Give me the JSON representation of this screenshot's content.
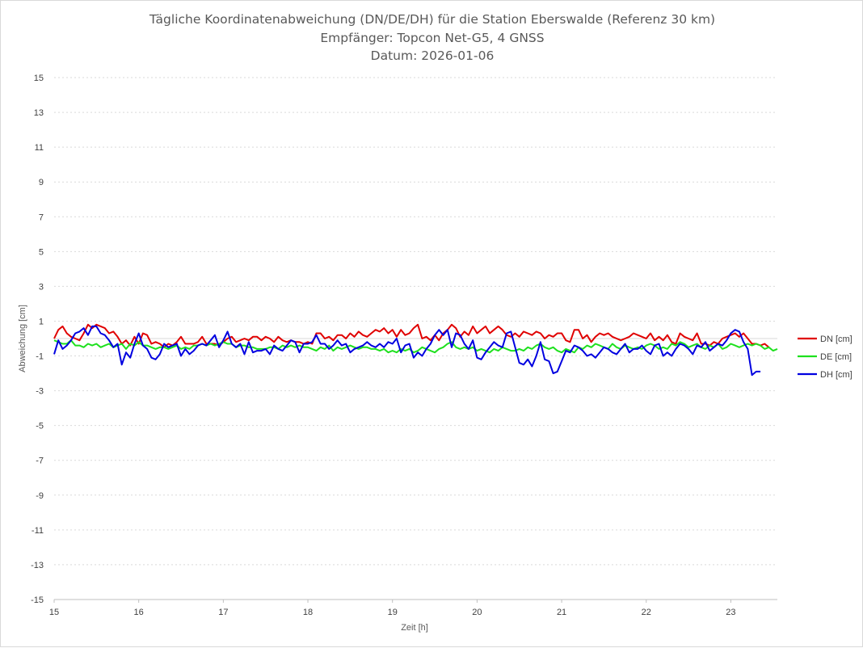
{
  "chart_data": {
    "type": "line",
    "title_lines": [
      "Tägliche Koordinatenabweichung (DN/DE/DH) für die Station Eberswalde (Referenz 30 km)",
      "Empfänger: Topcon Net-G5, 4 GNSS",
      "Datum: 2026-01-06"
    ],
    "xlabel": "Zeit [h]",
    "ylabel": "Abweichung [cm]",
    "xlim": [
      15,
      23.55
    ],
    "ylim": [
      -15,
      15
    ],
    "xticks": [
      15,
      16,
      17,
      18,
      19,
      20,
      21,
      22,
      23
    ],
    "yticks": [
      15,
      13,
      11,
      9,
      7,
      5,
      3,
      1,
      -1,
      -3,
      -5,
      -7,
      -9,
      -11,
      -13,
      -15
    ],
    "grid": true,
    "legend_position": "right",
    "x_start": 15,
    "x_step": 0.05,
    "series": [
      {
        "name": "DN [cm]",
        "color": "#e00000",
        "values": [
          0.0,
          0.5,
          0.7,
          0.3,
          0.1,
          0.0,
          -0.1,
          0.3,
          0.8,
          0.6,
          0.8,
          0.7,
          0.6,
          0.3,
          0.4,
          0.1,
          -0.3,
          -0.1,
          -0.4,
          0.1,
          -0.3,
          0.3,
          0.2,
          -0.3,
          -0.2,
          -0.3,
          -0.5,
          -0.3,
          -0.4,
          -0.2,
          0.1,
          -0.3,
          -0.3,
          -0.3,
          -0.2,
          0.1,
          -0.3,
          -0.3,
          -0.3,
          -0.4,
          -0.2,
          0.0,
          0.1,
          -0.2,
          -0.1,
          0.0,
          -0.1,
          0.1,
          0.1,
          -0.1,
          0.1,
          0.0,
          -0.2,
          0.1,
          -0.1,
          -0.2,
          -0.1,
          -0.2,
          -0.2,
          -0.3,
          -0.2,
          -0.3,
          0.3,
          0.3,
          0.0,
          0.1,
          -0.1,
          0.2,
          0.2,
          0.0,
          0.3,
          0.1,
          0.4,
          0.2,
          0.1,
          0.3,
          0.5,
          0.4,
          0.6,
          0.3,
          0.5,
          0.1,
          0.5,
          0.2,
          0.3,
          0.6,
          0.8,
          0.0,
          0.1,
          -0.1,
          0.2,
          -0.1,
          0.3,
          0.5,
          0.8,
          0.6,
          0.1,
          0.4,
          0.2,
          0.7,
          0.3,
          0.5,
          0.7,
          0.3,
          0.5,
          0.7,
          0.5,
          0.2,
          0.1,
          0.3,
          0.1,
          0.4,
          0.3,
          0.2,
          0.4,
          0.3,
          0.0,
          0.2,
          0.1,
          0.3,
          0.3,
          -0.1,
          -0.2,
          0.5,
          0.5,
          0.0,
          0.2,
          -0.2,
          0.1,
          0.3,
          0.2,
          0.3,
          0.1,
          0.0,
          -0.1,
          0.0,
          0.1,
          0.3,
          0.2,
          0.1,
          0.0,
          0.3,
          -0.1,
          0.1,
          -0.1,
          0.2,
          -0.2,
          -0.3,
          0.3,
          0.1,
          0.0,
          -0.1,
          0.3,
          -0.3,
          -0.3,
          -0.4,
          -0.2,
          -0.3,
          0.0,
          0.1,
          0.2,
          0.3,
          0.1,
          0.3,
          0.0,
          -0.3,
          -0.3,
          -0.4,
          -0.3,
          -0.5
        ]
      },
      {
        "name": "DE [cm]",
        "color": "#1ee01e",
        "values": [
          -0.1,
          -0.2,
          -0.3,
          -0.3,
          -0.1,
          -0.4,
          -0.4,
          -0.5,
          -0.3,
          -0.4,
          -0.3,
          -0.5,
          -0.4,
          -0.3,
          -0.5,
          -0.4,
          -0.3,
          -0.6,
          -0.3,
          -0.4,
          -0.2,
          -0.4,
          -0.4,
          -0.5,
          -0.6,
          -0.5,
          -0.5,
          -0.6,
          -0.5,
          -0.4,
          -0.6,
          -0.5,
          -0.6,
          -0.4,
          -0.4,
          -0.3,
          -0.4,
          -0.3,
          -0.4,
          -0.3,
          -0.2,
          -0.3,
          -0.3,
          -0.5,
          -0.4,
          -0.4,
          -0.5,
          -0.5,
          -0.6,
          -0.6,
          -0.6,
          -0.5,
          -0.5,
          -0.6,
          -0.4,
          -0.5,
          -0.4,
          -0.5,
          -0.4,
          -0.5,
          -0.5,
          -0.6,
          -0.7,
          -0.5,
          -0.6,
          -0.4,
          -0.7,
          -0.5,
          -0.6,
          -0.5,
          -0.4,
          -0.5,
          -0.6,
          -0.5,
          -0.5,
          -0.6,
          -0.6,
          -0.7,
          -0.6,
          -0.8,
          -0.7,
          -0.8,
          -0.6,
          -0.7,
          -0.6,
          -0.8,
          -0.7,
          -0.5,
          -0.6,
          -0.7,
          -0.8,
          -0.6,
          -0.5,
          -0.3,
          -0.2,
          -0.5,
          -0.6,
          -0.5,
          -0.6,
          -0.5,
          -0.7,
          -0.6,
          -0.7,
          -0.8,
          -0.6,
          -0.7,
          -0.5,
          -0.6,
          -0.7,
          -0.7,
          -0.6,
          -0.7,
          -0.5,
          -0.6,
          -0.4,
          -0.3,
          -0.5,
          -0.6,
          -0.5,
          -0.7,
          -0.8,
          -0.6,
          -0.7,
          -0.8,
          -0.5,
          -0.6,
          -0.4,
          -0.5,
          -0.3,
          -0.4,
          -0.5,
          -0.6,
          -0.3,
          -0.5,
          -0.6,
          -0.4,
          -0.5,
          -0.6,
          -0.5,
          -0.6,
          -0.4,
          -0.3,
          -0.4,
          -0.6,
          -0.5,
          -0.6,
          -0.3,
          -0.4,
          -0.2,
          -0.3,
          -0.5,
          -0.4,
          -0.3,
          -0.5,
          -0.6,
          -0.4,
          -0.5,
          -0.3,
          -0.6,
          -0.5,
          -0.3,
          -0.4,
          -0.5,
          -0.4,
          -0.3,
          -0.4,
          -0.3,
          -0.4,
          -0.6,
          -0.5,
          -0.7,
          -0.6
        ]
      },
      {
        "name": "DH [cm]",
        "color": "#0000e0",
        "values": [
          -0.9,
          -0.1,
          -0.6,
          -0.4,
          -0.1,
          0.3,
          0.4,
          0.6,
          0.2,
          0.7,
          0.7,
          0.3,
          0.2,
          -0.1,
          -0.5,
          -0.3,
          -1.5,
          -0.8,
          -1.1,
          -0.3,
          0.3,
          -0.4,
          -0.6,
          -1.1,
          -1.2,
          -0.9,
          -0.3,
          -0.5,
          -0.4,
          -0.3,
          -1.0,
          -0.6,
          -0.9,
          -0.7,
          -0.4,
          -0.3,
          -0.4,
          -0.1,
          0.2,
          -0.5,
          -0.1,
          0.4,
          -0.3,
          -0.5,
          -0.3,
          -0.9,
          -0.2,
          -0.8,
          -0.7,
          -0.7,
          -0.6,
          -0.9,
          -0.4,
          -0.6,
          -0.7,
          -0.4,
          -0.1,
          -0.2,
          -0.8,
          -0.3,
          -0.3,
          -0.2,
          0.2,
          -0.3,
          -0.3,
          -0.6,
          -0.4,
          -0.1,
          -0.4,
          -0.3,
          -0.8,
          -0.6,
          -0.5,
          -0.4,
          -0.2,
          -0.4,
          -0.5,
          -0.3,
          -0.5,
          -0.2,
          -0.3,
          0.0,
          -0.8,
          -0.4,
          -0.3,
          -1.1,
          -0.8,
          -1.0,
          -0.6,
          -0.3,
          0.2,
          0.5,
          0.2,
          0.5,
          -0.5,
          0.3,
          0.2,
          -0.3,
          -0.6,
          -0.1,
          -1.1,
          -1.2,
          -0.8,
          -0.5,
          -0.2,
          -0.4,
          -0.5,
          0.3,
          0.4,
          -0.5,
          -1.4,
          -1.5,
          -1.2,
          -1.6,
          -1.0,
          -0.2,
          -1.2,
          -1.3,
          -2.0,
          -1.9,
          -1.3,
          -0.7,
          -0.8,
          -0.4,
          -0.5,
          -0.7,
          -1.0,
          -0.9,
          -1.1,
          -0.8,
          -0.5,
          -0.6,
          -0.8,
          -0.9,
          -0.6,
          -0.3,
          -0.8,
          -0.6,
          -0.6,
          -0.4,
          -0.7,
          -0.9,
          -0.4,
          -0.3,
          -1.0,
          -0.8,
          -1.0,
          -0.6,
          -0.3,
          -0.4,
          -0.6,
          -0.9,
          -0.4,
          -0.5,
          -0.2,
          -0.7,
          -0.5,
          -0.3,
          -0.4,
          -0.1,
          0.3,
          0.5,
          0.4,
          -0.2,
          -0.6,
          -2.1,
          -1.9,
          -1.9
        ]
      }
    ]
  }
}
